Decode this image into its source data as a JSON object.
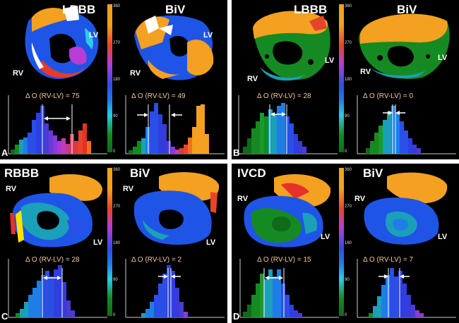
{
  "panels": [
    {
      "letter": "A",
      "left": {
        "title": "LBBB",
        "rv": "RV",
        "lv": "LV",
        "delta": "Δ O (RV-LV) = 75"
      },
      "right": {
        "title": "BiV",
        "rv": "RV",
        "lv": "LV",
        "delta": "Δ O (RV-LV) = 49"
      }
    },
    {
      "letter": "B",
      "left": {
        "title": "LBBB",
        "rv": "RV",
        "lv": "LV",
        "delta": "Δ O (RV-LV) = 28"
      },
      "right": {
        "title": "BiV",
        "rv": "RV",
        "lv": "LV",
        "delta": "Δ O (RV-LV) = 0"
      }
    },
    {
      "letter": "C",
      "left": {
        "title": "RBBB",
        "rv": "RV",
        "lv": "LV",
        "delta": "Δ O (RV-LV) = 28"
      },
      "right": {
        "title": "BiV",
        "rv": "RV",
        "lv": "LV",
        "delta": "Δ O (RV-LV) = 2"
      }
    },
    {
      "letter": "D",
      "left": {
        "title": "IVCD",
        "rv": "RV",
        "lv": "LV",
        "delta": "Δ O (RV-LV) = 15"
      },
      "right": {
        "title": "BiV",
        "rv": "RV",
        "lv": "LV",
        "delta": "Δ O (RV-LV) = 7"
      }
    }
  ],
  "colorbar_ticks": [
    "360",
    "270",
    "180",
    "90",
    "0"
  ],
  "colors": {
    "background": "#000000",
    "delta_text": "#f2c99a",
    "border": "#ffffff"
  }
}
